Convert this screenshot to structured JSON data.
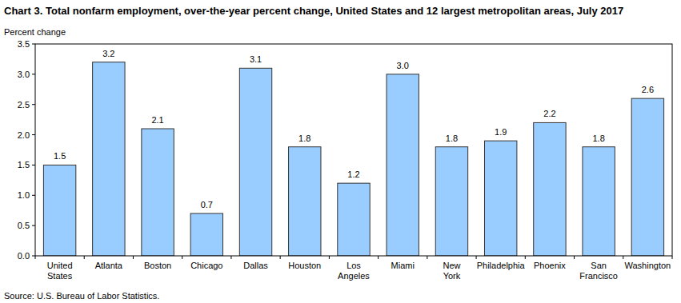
{
  "chart_data": {
    "type": "bar",
    "title": "Chart 3. Total nonfarm employment, over-the-year percent change, United States and 12 largest metropolitan areas, July 2017",
    "y_label": "Percent change",
    "source": "Source: U.S. Bureau of Labor Statistics.",
    "categories": [
      "United States",
      "Atlanta",
      "Boston",
      "Chicago",
      "Dallas",
      "Houston",
      "Los Angeles",
      "Miami",
      "New York",
      "Philadelphia",
      "Phoenix",
      "San Francisco",
      "Washington"
    ],
    "values": [
      1.5,
      3.2,
      2.1,
      0.7,
      3.1,
      1.8,
      1.2,
      3.0,
      1.8,
      1.9,
      2.2,
      1.8,
      2.6
    ],
    "value_labels": [
      "1.5",
      "3.2",
      "2.1",
      "0.7",
      "3.1",
      "1.8",
      "1.2",
      "3.0",
      "1.8",
      "1.9",
      "2.2",
      "1.8",
      "2.6"
    ],
    "color": "#99ccff",
    "ylim": [
      0,
      3.5
    ],
    "yticks": [
      {
        "value": 0,
        "label": "0.0"
      },
      0.5,
      {
        "value": 1,
        "label": "1.0"
      },
      1.5,
      {
        "value": 2,
        "label": "2.0"
      },
      2.5,
      {
        "value": 3,
        "label": "3.0"
      },
      3.5
    ],
    "grid": false,
    "data_labels": true
  }
}
